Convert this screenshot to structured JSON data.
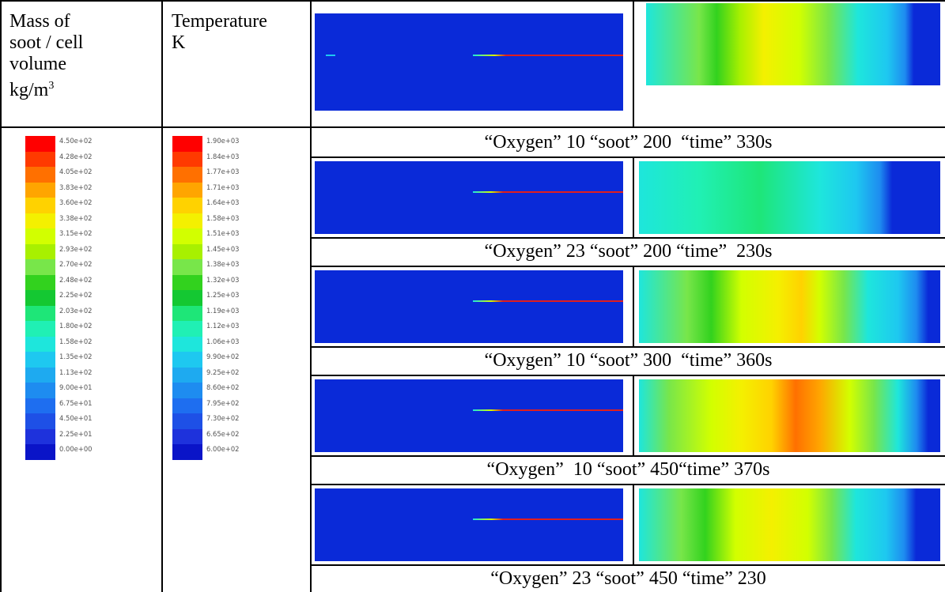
{
  "header": {
    "soot_title_line1": "Mass of",
    "soot_title_line2": "soot / cell",
    "soot_title_line3": "volume",
    "soot_title_unit_base": "kg/m",
    "soot_title_unit_exp": "3",
    "temp_title_line1": "Temperature",
    "temp_title_line2": "K"
  },
  "soot_legend": {
    "labels": [
      "4.50e+02",
      "4.28e+02",
      "4.05e+02",
      "3.83e+02",
      "3.60e+02",
      "3.38e+02",
      "3.15e+02",
      "2.93e+02",
      "2.70e+02",
      "2.48e+02",
      "2.25e+02",
      "2.03e+02",
      "1.80e+02",
      "1.58e+02",
      "1.35e+02",
      "1.13e+02",
      "9.00e+01",
      "6.75e+01",
      "4.50e+01",
      "2.25e+01",
      "0.00e+00"
    ]
  },
  "temp_legend": {
    "labels": [
      "1.90e+03",
      "1.84e+03",
      "1.77e+03",
      "1.71e+03",
      "1.64e+03",
      "1.58e+03",
      "1.51e+03",
      "1.45e+03",
      "1.38e+03",
      "1.32e+03",
      "1.25e+03",
      "1.19e+03",
      "1.12e+03",
      "1.06e+03",
      "9.90e+02",
      "9.25e+02",
      "8.60e+02",
      "7.95e+02",
      "7.30e+02",
      "6.65e+02",
      "6.00e+02"
    ]
  },
  "legend_colors": [
    "#ff0000",
    "#ff3a00",
    "#ff7000",
    "#ffa500",
    "#ffd200",
    "#f4f000",
    "#d2ff00",
    "#a8f000",
    "#78e64a",
    "#32d21e",
    "#14c832",
    "#1ee678",
    "#20f0b4",
    "#1ee6dc",
    "#1ec8f0",
    "#1eaaf0",
    "#1e8cf0",
    "#1e6ef0",
    "#1e50e6",
    "#1e32dc",
    "#0a14c8"
  ],
  "captions": [
    "“Oxygen” 10 “soot” 200  “time” 330s",
    "“Oxygen” 23 “soot” 200 “time”  230s",
    "“Oxygen” 10 “soot” 300  “time” 360s",
    "“Oxygen”  10 “soot” 450“time” 370s",
    "“Oxygen” 23 “soot” 450 “time” 230"
  ],
  "colors": {
    "panel_blue": "#0a2ad8",
    "streak_red": "#e01e1e"
  }
}
